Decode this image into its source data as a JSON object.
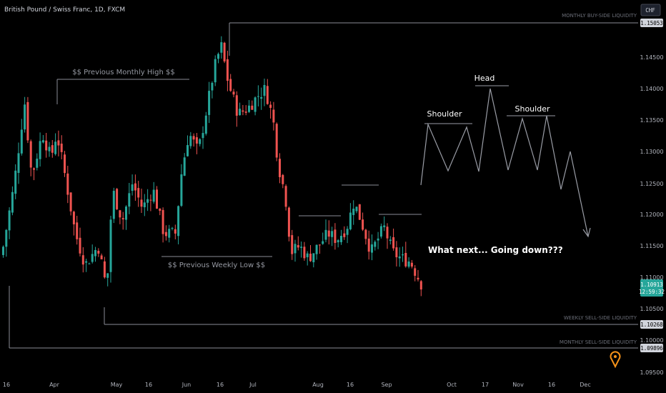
{
  "header": {
    "title": "British Pound / Swiss Franc, 1D, FXCM",
    "currency": "CHF"
  },
  "chart_data": {
    "type": "candlestick",
    "y_ticks": [
      "1.15053",
      "1.14500",
      "1.14000",
      "1.13500",
      "1.13000",
      "1.12500",
      "1.12000",
      "1.11500",
      "1.11000",
      "1.10500",
      "1.10000",
      "1.09500"
    ],
    "ylim": [
      1.0925,
      1.152
    ],
    "x_ticks": [
      "16",
      "Apr",
      "May",
      "16",
      "Jun",
      "16",
      "Jul",
      "Aug",
      "16",
      "Sep",
      "Oct",
      "17",
      "Nov",
      "16",
      "Dec"
    ],
    "price_tags": {
      "current": {
        "value": "1.10913",
        "countdown": "12:59:32",
        "color": "#26a69a"
      },
      "monthly_buy_side": "1.15053",
      "weekly_sell_side": "1.10268",
      "monthly_sell_side": "1.09896"
    },
    "levels": {
      "monthly_buy_side": {
        "label": "MONTHLY BUY-SIDE LIQUIDITY",
        "value": 1.15053
      },
      "weekly_sell_side": {
        "label": "WEEKLY SELL-SIDE LIQUIDITY",
        "value": 1.10268
      },
      "monthly_sell_side": {
        "label": "MONTHLY SELL-SIDE LIQUIDITY",
        "value": 1.09896
      },
      "prev_monthly_high": {
        "label": "$$ Previous Monthly High $$",
        "value": 1.1415
      },
      "prev_weekly_low": {
        "label": "$$ Previous Weekly Low $$",
        "value": 1.1135
      }
    },
    "pattern": {
      "left_shoulder": "Shoulder",
      "head": "Head",
      "right_shoulder": "Shoulder"
    },
    "annotation": "What next... Going down???",
    "colors": {
      "up": "#26a69a",
      "down": "#ef5350",
      "background": "#000000",
      "marker": "#f7931a"
    }
  }
}
